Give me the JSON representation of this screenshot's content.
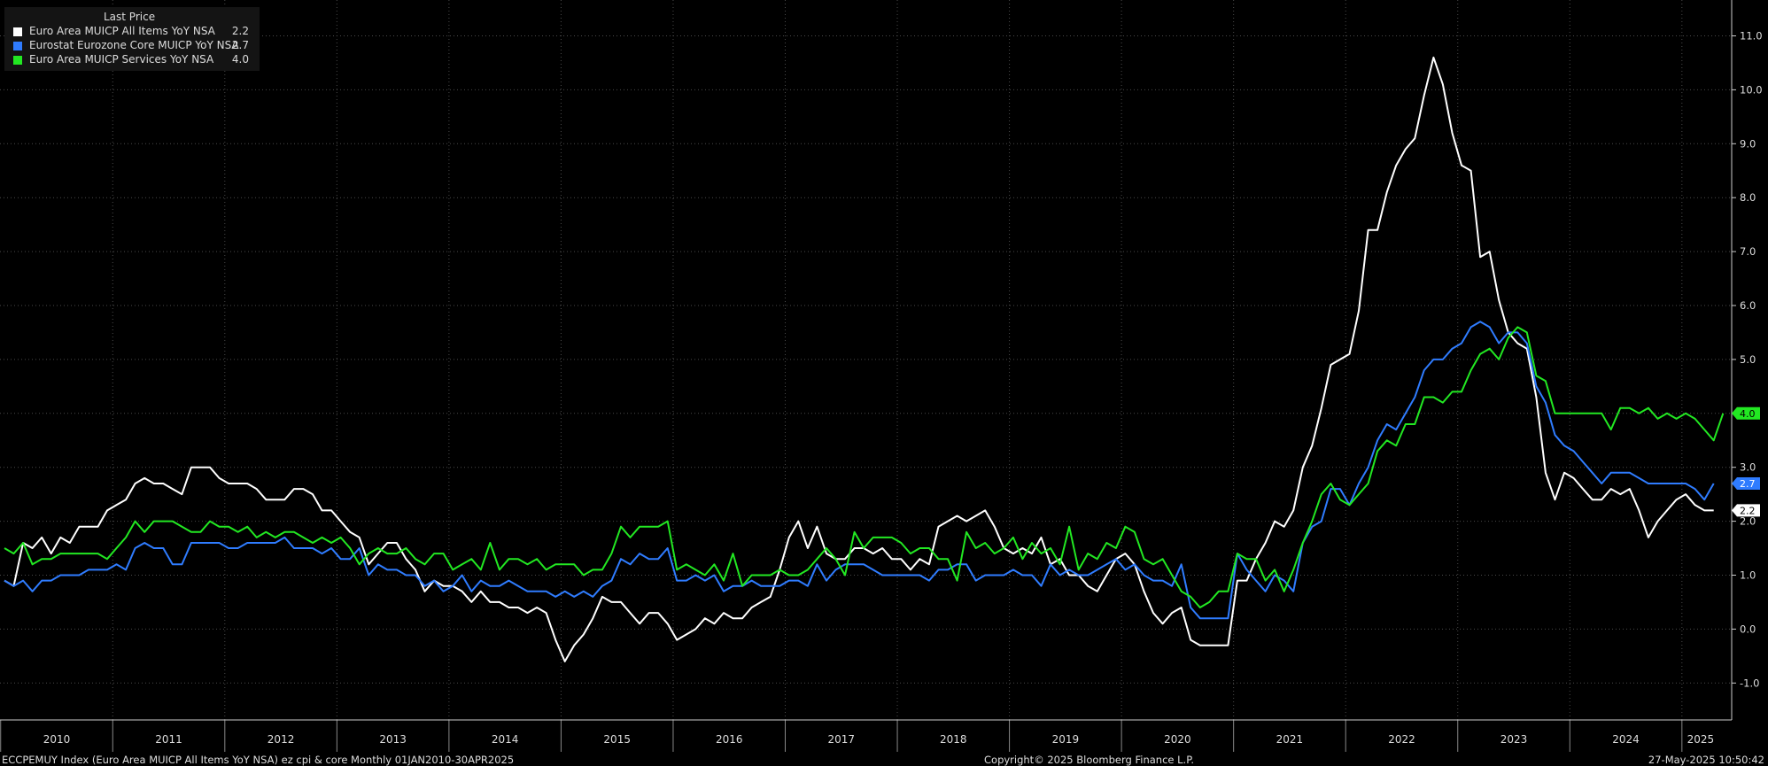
{
  "legend": {
    "title": "Last Price",
    "items": [
      {
        "name": "Euro Area MUICP All Items YoY NSA",
        "value": "2.2",
        "color": "#ffffff"
      },
      {
        "name": "Eurostat Eurozone Core MUICP YoY NSA",
        "value": "2.7",
        "color": "#2f7cff"
      },
      {
        "name": "Euro Area MUICP Services YoY NSA",
        "value": "4.0",
        "color": "#22e822"
      }
    ]
  },
  "footer": {
    "left": "ECCPEMUY Index (Euro Area MUICP All Items YoY NSA) ez cpi & core  Monthly 01JAN2010-30APR2025",
    "center": "Copyright© 2025 Bloomberg Finance L.P.",
    "right": "27-May-2025 10:50:42"
  },
  "chart_data": {
    "type": "line",
    "x_range": [
      "2010-01",
      "2025-04"
    ],
    "x_tick_labels": [
      "2010",
      "2011",
      "2012",
      "2013",
      "2014",
      "2015",
      "2016",
      "2017",
      "2018",
      "2019",
      "2020",
      "2021",
      "2022",
      "2023",
      "2024",
      "2025"
    ],
    "ylim": [
      -1.5,
      11.5
    ],
    "y_ticks": [
      -1.0,
      0.0,
      1.0,
      2.0,
      3.0,
      4.0,
      5.0,
      6.0,
      7.0,
      8.0,
      9.0,
      10.0,
      11.0
    ],
    "y_tick_labels": [
      "-1.0",
      "0.0",
      "1.0",
      "2.0",
      "3.0",
      "4.0",
      "5.0",
      "6.0",
      "7.0",
      "8.0",
      "9.0",
      "10.0",
      "11.0"
    ],
    "grid": true,
    "legend_position": "top-left",
    "series": [
      {
        "name": "Euro Area MUICP All Items YoY NSA",
        "color": "#ffffff",
        "last_label": "2.2",
        "values": [
          0.9,
          0.8,
          1.6,
          1.5,
          1.7,
          1.4,
          1.7,
          1.6,
          1.9,
          1.9,
          1.9,
          2.2,
          2.3,
          2.4,
          2.7,
          2.8,
          2.7,
          2.7,
          2.6,
          2.5,
          3.0,
          3.0,
          3.0,
          2.8,
          2.7,
          2.7,
          2.7,
          2.6,
          2.4,
          2.4,
          2.4,
          2.6,
          2.6,
          2.5,
          2.2,
          2.2,
          2.0,
          1.8,
          1.7,
          1.2,
          1.4,
          1.6,
          1.6,
          1.3,
          1.1,
          0.7,
          0.9,
          0.8,
          0.8,
          0.7,
          0.5,
          0.7,
          0.5,
          0.5,
          0.4,
          0.4,
          0.3,
          0.4,
          0.3,
          -0.2,
          -0.6,
          -0.3,
          -0.1,
          0.2,
          0.6,
          0.5,
          0.5,
          0.3,
          0.1,
          0.3,
          0.3,
          0.1,
          -0.2,
          -0.1,
          0.0,
          0.2,
          0.1,
          0.3,
          0.2,
          0.2,
          0.4,
          0.5,
          0.6,
          1.1,
          1.7,
          2.0,
          1.5,
          1.9,
          1.4,
          1.3,
          1.3,
          1.5,
          1.5,
          1.4,
          1.5,
          1.3,
          1.3,
          1.1,
          1.3,
          1.2,
          1.9,
          2.0,
          2.1,
          2.0,
          2.1,
          2.2,
          1.9,
          1.5,
          1.4,
          1.5,
          1.4,
          1.7,
          1.2,
          1.3,
          1.0,
          1.0,
          0.8,
          0.7,
          1.0,
          1.3,
          1.4,
          1.2,
          0.7,
          0.3,
          0.1,
          0.3,
          0.4,
          -0.2,
          -0.3,
          -0.3,
          -0.3,
          -0.3,
          0.9,
          0.9,
          1.3,
          1.6,
          2.0,
          1.9,
          2.2,
          3.0,
          3.4,
          4.1,
          4.9,
          5.0,
          5.1,
          5.9,
          7.4,
          7.4,
          8.1,
          8.6,
          8.9,
          9.1,
          9.9,
          10.6,
          10.1,
          9.2,
          8.6,
          8.5,
          6.9,
          7.0,
          6.1,
          5.5,
          5.3,
          5.2,
          4.3,
          2.9,
          2.4,
          2.9,
          2.8,
          2.6,
          2.4,
          2.4,
          2.6,
          2.5,
          2.6,
          2.2,
          1.7,
          2.0,
          2.2,
          2.4,
          2.5,
          2.3,
          2.2,
          2.2
        ]
      },
      {
        "name": "Eurostat Eurozone Core MUICP YoY NSA",
        "color": "#2f7cff",
        "last_label": "2.7",
        "values": [
          0.9,
          0.8,
          0.9,
          0.7,
          0.9,
          0.9,
          1.0,
          1.0,
          1.0,
          1.1,
          1.1,
          1.1,
          1.2,
          1.1,
          1.5,
          1.6,
          1.5,
          1.5,
          1.2,
          1.2,
          1.6,
          1.6,
          1.6,
          1.6,
          1.5,
          1.5,
          1.6,
          1.6,
          1.6,
          1.6,
          1.7,
          1.5,
          1.5,
          1.5,
          1.4,
          1.5,
          1.3,
          1.3,
          1.5,
          1.0,
          1.2,
          1.1,
          1.1,
          1.0,
          1.0,
          0.8,
          0.9,
          0.7,
          0.8,
          1.0,
          0.7,
          0.9,
          0.8,
          0.8,
          0.9,
          0.8,
          0.7,
          0.7,
          0.7,
          0.6,
          0.7,
          0.6,
          0.7,
          0.6,
          0.8,
          0.9,
          1.3,
          1.2,
          1.4,
          1.3,
          1.3,
          1.5,
          0.9,
          0.9,
          1.0,
          0.9,
          1.0,
          0.7,
          0.8,
          0.8,
          0.9,
          0.8,
          0.8,
          0.8,
          0.9,
          0.9,
          0.8,
          1.2,
          0.9,
          1.1,
          1.2,
          1.2,
          1.2,
          1.1,
          1.0,
          1.0,
          1.0,
          1.0,
          1.0,
          0.9,
          1.1,
          1.1,
          1.2,
          1.2,
          0.9,
          1.0,
          1.0,
          1.0,
          1.1,
          1.0,
          1.0,
          0.8,
          1.2,
          1.0,
          1.1,
          1.0,
          1.0,
          1.1,
          1.2,
          1.3,
          1.1,
          1.2,
          1.0,
          0.9,
          0.9,
          0.8,
          1.2,
          0.4,
          0.2,
          0.2,
          0.2,
          0.2,
          1.4,
          1.1,
          0.9,
          0.7,
          1.0,
          0.9,
          0.7,
          1.6,
          1.9,
          2.0,
          2.6,
          2.6,
          2.3,
          2.7,
          3.0,
          3.5,
          3.8,
          3.7,
          4.0,
          4.3,
          4.8,
          5.0,
          5.0,
          5.2,
          5.3,
          5.6,
          5.7,
          5.6,
          5.3,
          5.5,
          5.5,
          5.3,
          4.5,
          4.2,
          3.6,
          3.4,
          3.3,
          3.1,
          2.9,
          2.7,
          2.9,
          2.9,
          2.9,
          2.8,
          2.7,
          2.7,
          2.7,
          2.7,
          2.7,
          2.6,
          2.4,
          2.7
        ]
      },
      {
        "name": "Euro Area MUICP Services YoY NSA",
        "color": "#22e822",
        "last_label": "4.0",
        "values": [
          1.5,
          1.4,
          1.6,
          1.2,
          1.3,
          1.3,
          1.4,
          1.4,
          1.4,
          1.4,
          1.4,
          1.3,
          1.5,
          1.7,
          2.0,
          1.8,
          2.0,
          2.0,
          2.0,
          1.9,
          1.8,
          1.8,
          2.0,
          1.9,
          1.9,
          1.8,
          1.9,
          1.7,
          1.8,
          1.7,
          1.8,
          1.8,
          1.7,
          1.6,
          1.7,
          1.6,
          1.7,
          1.5,
          1.2,
          1.4,
          1.5,
          1.4,
          1.4,
          1.5,
          1.3,
          1.2,
          1.4,
          1.4,
          1.1,
          1.2,
          1.3,
          1.1,
          1.6,
          1.1,
          1.3,
          1.3,
          1.2,
          1.3,
          1.1,
          1.2,
          1.2,
          1.2,
          1.0,
          1.1,
          1.1,
          1.4,
          1.9,
          1.7,
          1.9,
          1.9,
          1.9,
          2.0,
          1.1,
          1.2,
          1.1,
          1.0,
          1.2,
          0.9,
          1.4,
          0.8,
          1.0,
          1.0,
          1.0,
          1.1,
          1.0,
          1.0,
          1.1,
          1.3,
          1.5,
          1.3,
          1.0,
          1.8,
          1.5,
          1.7,
          1.7,
          1.7,
          1.6,
          1.4,
          1.5,
          1.5,
          1.3,
          1.3,
          0.9,
          1.8,
          1.5,
          1.6,
          1.4,
          1.5,
          1.7,
          1.3,
          1.6,
          1.4,
          1.5,
          1.2,
          1.9,
          1.1,
          1.4,
          1.3,
          1.6,
          1.5,
          1.9,
          1.8,
          1.3,
          1.2,
          1.3,
          1.0,
          0.7,
          0.6,
          0.4,
          0.5,
          0.7,
          0.7,
          1.4,
          1.3,
          1.3,
          0.9,
          1.1,
          0.7,
          1.1,
          1.6,
          2.0,
          2.5,
          2.7,
          2.4,
          2.3,
          2.5,
          2.7,
          3.3,
          3.5,
          3.4,
          3.8,
          3.8,
          4.3,
          4.3,
          4.2,
          4.4,
          4.4,
          4.8,
          5.1,
          5.2,
          5.0,
          5.4,
          5.6,
          5.5,
          4.7,
          4.6,
          4.0,
          4.0,
          4.0,
          4.0,
          4.0,
          4.0,
          3.7,
          4.1,
          4.1,
          4.0,
          4.1,
          3.9,
          4.0,
          3.9,
          4.0,
          3.9,
          3.7,
          3.5,
          4.0
        ]
      }
    ]
  }
}
